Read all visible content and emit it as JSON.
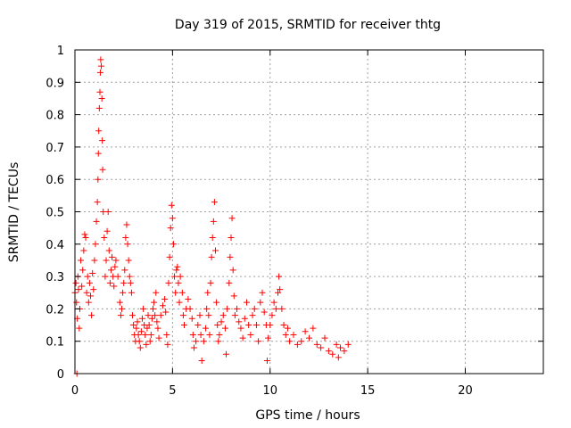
{
  "chart_data": {
    "type": "scatter",
    "title": "Day 319 of 2015, SRMTID for receiver thtg",
    "xlabel": "GPS time / hours",
    "ylabel": "SRMTID / TECUs",
    "xlim": [
      0,
      24
    ],
    "ylim": [
      0,
      1
    ],
    "xticks": [
      0,
      5,
      10,
      15,
      20
    ],
    "yticks": [
      0,
      0.1,
      0.2,
      0.3,
      0.4,
      0.5,
      0.6,
      0.7,
      0.8,
      0.9,
      1
    ],
    "xtick_labels": [
      "0",
      "5",
      "10",
      "15",
      "20"
    ],
    "ytick_labels": [
      "0",
      "0.1",
      "0.2",
      "0.3",
      "0.4",
      "0.5",
      "0.6",
      "0.7",
      "0.8",
      "0.9",
      "1"
    ],
    "grid": true,
    "marker": "+",
    "marker_color": "#ff0000",
    "series": [
      {
        "name": "SRMTID",
        "points": [
          [
            0.0,
            0.25
          ],
          [
            0.05,
            0.28
          ],
          [
            0.08,
            0.22
          ],
          [
            0.1,
            0.0
          ],
          [
            0.12,
            0.17
          ],
          [
            0.15,
            0.3
          ],
          [
            0.18,
            0.26
          ],
          [
            0.22,
            0.14
          ],
          [
            0.25,
            0.2
          ],
          [
            0.3,
            0.35
          ],
          [
            0.35,
            0.27
          ],
          [
            0.4,
            0.32
          ],
          [
            0.45,
            0.38
          ],
          [
            0.5,
            0.43
          ],
          [
            0.55,
            0.42
          ],
          [
            0.6,
            0.25
          ],
          [
            0.65,
            0.3
          ],
          [
            0.7,
            0.22
          ],
          [
            0.75,
            0.28
          ],
          [
            0.8,
            0.24
          ],
          [
            0.85,
            0.18
          ],
          [
            0.9,
            0.31
          ],
          [
            0.95,
            0.26
          ],
          [
            1.0,
            0.35
          ],
          [
            1.05,
            0.4
          ],
          [
            1.1,
            0.47
          ],
          [
            1.15,
            0.53
          ],
          [
            1.18,
            0.6
          ],
          [
            1.2,
            0.68
          ],
          [
            1.22,
            0.75
          ],
          [
            1.25,
            0.82
          ],
          [
            1.28,
            0.87
          ],
          [
            1.3,
            0.93
          ],
          [
            1.32,
            0.97
          ],
          [
            1.35,
            0.95
          ],
          [
            1.38,
            0.85
          ],
          [
            1.4,
            0.72
          ],
          [
            1.42,
            0.63
          ],
          [
            1.45,
            0.5
          ],
          [
            1.5,
            0.42
          ],
          [
            1.55,
            0.3
          ],
          [
            1.6,
            0.35
          ],
          [
            1.65,
            0.44
          ],
          [
            1.7,
            0.5
          ],
          [
            1.75,
            0.38
          ],
          [
            1.8,
            0.28
          ],
          [
            1.85,
            0.32
          ],
          [
            1.9,
            0.36
          ],
          [
            1.95,
            0.3
          ],
          [
            2.0,
            0.27
          ],
          [
            2.05,
            0.33
          ],
          [
            2.1,
            0.35
          ],
          [
            2.2,
            0.3
          ],
          [
            2.3,
            0.22
          ],
          [
            2.35,
            0.18
          ],
          [
            2.4,
            0.2
          ],
          [
            2.45,
            0.25
          ],
          [
            2.5,
            0.28
          ],
          [
            2.55,
            0.32
          ],
          [
            2.6,
            0.42
          ],
          [
            2.65,
            0.46
          ],
          [
            2.7,
            0.4
          ],
          [
            2.75,
            0.35
          ],
          [
            2.8,
            0.3
          ],
          [
            2.85,
            0.28
          ],
          [
            2.9,
            0.25
          ],
          [
            2.95,
            0.18
          ],
          [
            3.0,
            0.15
          ],
          [
            3.05,
            0.12
          ],
          [
            3.1,
            0.1
          ],
          [
            3.15,
            0.14
          ],
          [
            3.2,
            0.16
          ],
          [
            3.25,
            0.12
          ],
          [
            3.3,
            0.1
          ],
          [
            3.35,
            0.08
          ],
          [
            3.4,
            0.13
          ],
          [
            3.45,
            0.17
          ],
          [
            3.5,
            0.2
          ],
          [
            3.55,
            0.15
          ],
          [
            3.6,
            0.12
          ],
          [
            3.65,
            0.09
          ],
          [
            3.7,
            0.14
          ],
          [
            3.75,
            0.18
          ],
          [
            3.8,
            0.15
          ],
          [
            3.85,
            0.1
          ],
          [
            3.9,
            0.12
          ],
          [
            3.95,
            0.17
          ],
          [
            4.0,
            0.2
          ],
          [
            4.05,
            0.22
          ],
          [
            4.1,
            0.18
          ],
          [
            4.15,
            0.25
          ],
          [
            4.2,
            0.16
          ],
          [
            4.25,
            0.14
          ],
          [
            4.3,
            0.11
          ],
          [
            4.4,
            0.18
          ],
          [
            4.5,
            0.21
          ],
          [
            4.6,
            0.23
          ],
          [
            4.65,
            0.19
          ],
          [
            4.7,
            0.12
          ],
          [
            4.75,
            0.09
          ],
          [
            4.8,
            0.28
          ],
          [
            4.85,
            0.36
          ],
          [
            4.9,
            0.45
          ],
          [
            4.95,
            0.52
          ],
          [
            5.0,
            0.48
          ],
          [
            5.05,
            0.4
          ],
          [
            5.1,
            0.3
          ],
          [
            5.15,
            0.25
          ],
          [
            5.2,
            0.32
          ],
          [
            5.25,
            0.33
          ],
          [
            5.3,
            0.28
          ],
          [
            5.35,
            0.22
          ],
          [
            5.4,
            0.3
          ],
          [
            5.5,
            0.25
          ],
          [
            5.55,
            0.18
          ],
          [
            5.6,
            0.15
          ],
          [
            5.7,
            0.2
          ],
          [
            5.8,
            0.23
          ],
          [
            5.9,
            0.2
          ],
          [
            6.0,
            0.17
          ],
          [
            6.05,
            0.12
          ],
          [
            6.1,
            0.08
          ],
          [
            6.2,
            0.1
          ],
          [
            6.3,
            0.15
          ],
          [
            6.4,
            0.18
          ],
          [
            6.45,
            0.12
          ],
          [
            6.5,
            0.04
          ],
          [
            6.6,
            0.1
          ],
          [
            6.7,
            0.14
          ],
          [
            6.75,
            0.2
          ],
          [
            6.8,
            0.25
          ],
          [
            6.85,
            0.18
          ],
          [
            6.9,
            0.12
          ],
          [
            6.95,
            0.28
          ],
          [
            7.0,
            0.36
          ],
          [
            7.05,
            0.42
          ],
          [
            7.1,
            0.47
          ],
          [
            7.15,
            0.53
          ],
          [
            7.2,
            0.38
          ],
          [
            7.25,
            0.22
          ],
          [
            7.3,
            0.15
          ],
          [
            7.35,
            0.1
          ],
          [
            7.4,
            0.12
          ],
          [
            7.5,
            0.16
          ],
          [
            7.6,
            0.18
          ],
          [
            7.7,
            0.14
          ],
          [
            7.75,
            0.06
          ],
          [
            7.8,
            0.2
          ],
          [
            7.9,
            0.28
          ],
          [
            7.95,
            0.36
          ],
          [
            8.0,
            0.42
          ],
          [
            8.05,
            0.48
          ],
          [
            8.1,
            0.32
          ],
          [
            8.15,
            0.24
          ],
          [
            8.2,
            0.18
          ],
          [
            8.3,
            0.2
          ],
          [
            8.4,
            0.16
          ],
          [
            8.5,
            0.14
          ],
          [
            8.6,
            0.11
          ],
          [
            8.7,
            0.17
          ],
          [
            8.8,
            0.22
          ],
          [
            8.9,
            0.15
          ],
          [
            9.0,
            0.12
          ],
          [
            9.1,
            0.18
          ],
          [
            9.2,
            0.2
          ],
          [
            9.3,
            0.15
          ],
          [
            9.4,
            0.1
          ],
          [
            9.5,
            0.22
          ],
          [
            9.6,
            0.25
          ],
          [
            9.7,
            0.19
          ],
          [
            9.8,
            0.15
          ],
          [
            9.85,
            0.04
          ],
          [
            9.9,
            0.11
          ],
          [
            10.0,
            0.15
          ],
          [
            10.1,
            0.18
          ],
          [
            10.2,
            0.22
          ],
          [
            10.3,
            0.2
          ],
          [
            10.4,
            0.25
          ],
          [
            10.45,
            0.3
          ],
          [
            10.5,
            0.26
          ],
          [
            10.6,
            0.2
          ],
          [
            10.7,
            0.15
          ],
          [
            10.8,
            0.12
          ],
          [
            10.9,
            0.14
          ],
          [
            11.0,
            0.1
          ],
          [
            11.2,
            0.12
          ],
          [
            11.4,
            0.09
          ],
          [
            11.6,
            0.1
          ],
          [
            11.8,
            0.13
          ],
          [
            12.0,
            0.11
          ],
          [
            12.2,
            0.14
          ],
          [
            12.4,
            0.09
          ],
          [
            12.6,
            0.08
          ],
          [
            12.8,
            0.11
          ],
          [
            13.0,
            0.07
          ],
          [
            13.2,
            0.06
          ],
          [
            13.4,
            0.09
          ],
          [
            13.5,
            0.05
          ],
          [
            13.6,
            0.08
          ],
          [
            13.8,
            0.07
          ],
          [
            14.0,
            0.09
          ]
        ]
      }
    ]
  }
}
